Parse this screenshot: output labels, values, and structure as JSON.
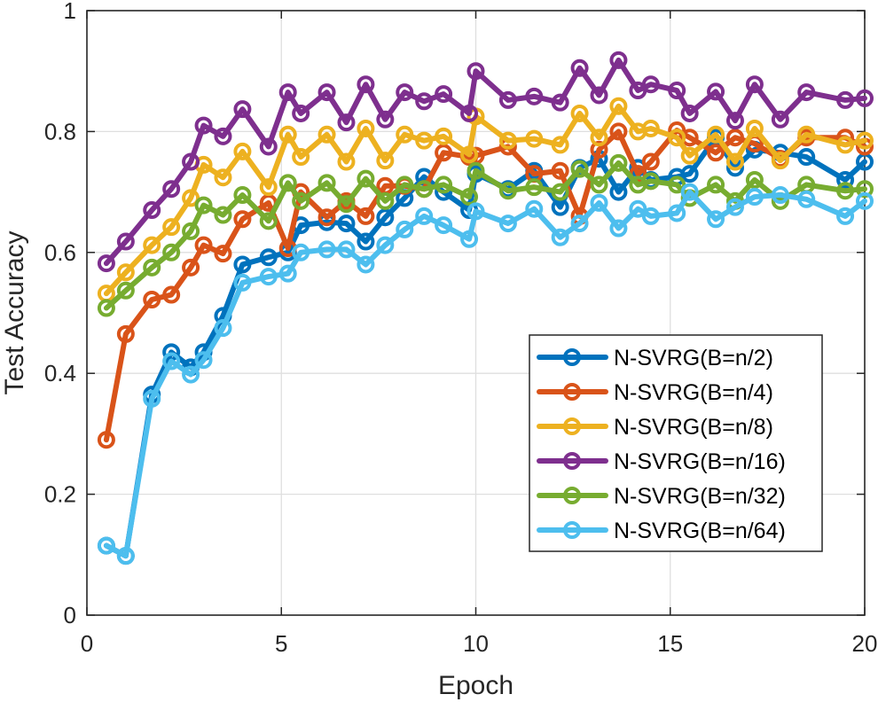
{
  "chart_data": {
    "type": "line",
    "title": "",
    "xlabel": "Epoch",
    "ylabel": "Test Accuracy",
    "xlim": [
      0,
      20
    ],
    "ylim": [
      0,
      1
    ],
    "xticks": [
      "0",
      "5",
      "10",
      "15",
      "20"
    ],
    "yticks": [
      "0",
      "0.2",
      "0.4",
      "0.6",
      "0.8",
      "1"
    ],
    "grid": true,
    "legend_position": "lower-right",
    "x": [
      0.5,
      1.0,
      1.67,
      2.17,
      2.67,
      3.0,
      3.5,
      4.0,
      4.67,
      5.17,
      5.5,
      6.17,
      6.67,
      7.17,
      7.67,
      8.17,
      8.67,
      9.17,
      9.83,
      10.0,
      10.83,
      11.5,
      12.17,
      12.67,
      13.17,
      13.67,
      14.17,
      14.5,
      15.17,
      15.5,
      16.17,
      16.67,
      17.17,
      17.83,
      18.5,
      19.5,
      20.0
    ],
    "series": [
      {
        "name": "N-SVRG(B=n/2)",
        "color": "#0072BD",
        "values": [
          0.115,
          0.098,
          0.365,
          0.435,
          0.41,
          0.435,
          0.495,
          0.58,
          0.592,
          0.6,
          0.645,
          0.65,
          0.648,
          0.618,
          0.658,
          0.69,
          0.725,
          0.7,
          0.67,
          0.73,
          0.705,
          0.735,
          0.675,
          0.74,
          0.755,
          0.7,
          0.74,
          0.72,
          0.725,
          0.73,
          0.79,
          0.74,
          0.77,
          0.765,
          0.758,
          0.72,
          0.75
        ]
      },
      {
        "name": "N-SVRG(B=n/4)",
        "color": "#D95319",
        "values": [
          0.29,
          0.465,
          0.522,
          0.53,
          0.575,
          0.612,
          0.598,
          0.655,
          0.682,
          0.607,
          0.7,
          0.658,
          0.685,
          0.66,
          0.71,
          0.71,
          0.705,
          0.765,
          0.758,
          0.76,
          0.775,
          0.73,
          0.735,
          0.66,
          0.77,
          0.8,
          0.73,
          0.75,
          0.802,
          0.79,
          0.765,
          0.79,
          0.78,
          0.755,
          0.79,
          0.79,
          0.775
        ]
      },
      {
        "name": "N-SVRG(B=n/8)",
        "color": "#EDB120",
        "values": [
          0.532,
          0.567,
          0.612,
          0.642,
          0.69,
          0.745,
          0.724,
          0.767,
          0.708,
          0.795,
          0.758,
          0.795,
          0.75,
          0.805,
          0.752,
          0.795,
          0.785,
          0.792,
          0.762,
          0.825,
          0.785,
          0.788,
          0.778,
          0.83,
          0.79,
          0.842,
          0.8,
          0.805,
          0.79,
          0.76,
          0.795,
          0.75,
          0.805,
          0.752,
          0.795,
          0.778,
          0.785
        ]
      },
      {
        "name": "N-SVRG(B=n/16)",
        "color": "#7E2F8E",
        "values": [
          0.582,
          0.618,
          0.67,
          0.705,
          0.75,
          0.81,
          0.792,
          0.837,
          0.775,
          0.865,
          0.83,
          0.865,
          0.815,
          0.878,
          0.82,
          0.865,
          0.85,
          0.862,
          0.83,
          0.9,
          0.852,
          0.858,
          0.848,
          0.905,
          0.86,
          0.918,
          0.868,
          0.878,
          0.868,
          0.83,
          0.866,
          0.818,
          0.878,
          0.82,
          0.865,
          0.852,
          0.855
        ]
      },
      {
        "name": "N-SVRG(B=n/32)",
        "color": "#77AC30",
        "values": [
          0.508,
          0.537,
          0.575,
          0.6,
          0.635,
          0.678,
          0.662,
          0.695,
          0.652,
          0.715,
          0.685,
          0.715,
          0.68,
          0.722,
          0.685,
          0.712,
          0.705,
          0.712,
          0.692,
          0.735,
          0.702,
          0.708,
          0.7,
          0.738,
          0.712,
          0.748,
          0.712,
          0.718,
          0.712,
          0.69,
          0.712,
          0.685,
          0.72,
          0.685,
          0.712,
          0.702,
          0.705
        ]
      },
      {
        "name": "N-SVRG(B=n/64)",
        "color": "#4DBEEE",
        "values": [
          0.115,
          0.098,
          0.358,
          0.42,
          0.398,
          0.422,
          0.475,
          0.55,
          0.56,
          0.565,
          0.6,
          0.605,
          0.605,
          0.58,
          0.612,
          0.638,
          0.66,
          0.645,
          0.622,
          0.668,
          0.648,
          0.672,
          0.625,
          0.648,
          0.682,
          0.64,
          0.672,
          0.66,
          0.665,
          0.7,
          0.655,
          0.675,
          0.692,
          0.695,
          0.688,
          0.66,
          0.685
        ]
      }
    ]
  }
}
